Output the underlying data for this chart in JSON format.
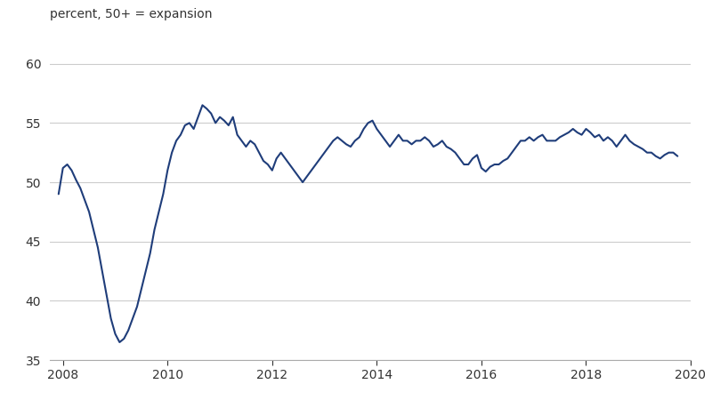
{
  "ylabel": "percent, 50+ = expansion",
  "xlim": [
    2007.75,
    2020.0
  ],
  "ylim": [
    35,
    62
  ],
  "yticks": [
    35,
    40,
    45,
    50,
    55,
    60
  ],
  "xticks": [
    2008,
    2010,
    2012,
    2014,
    2016,
    2018,
    2020
  ],
  "line_color": "#1f3d7a",
  "line_width": 1.5,
  "bg_color": "#ffffff",
  "grid_color": "#cccccc",
  "label_color": "#333333",
  "dates": [
    2007.917,
    2008.0,
    2008.083,
    2008.167,
    2008.25,
    2008.333,
    2008.417,
    2008.5,
    2008.583,
    2008.667,
    2008.75,
    2008.833,
    2008.917,
    2009.0,
    2009.083,
    2009.167,
    2009.25,
    2009.333,
    2009.417,
    2009.5,
    2009.583,
    2009.667,
    2009.75,
    2009.833,
    2009.917,
    2010.0,
    2010.083,
    2010.167,
    2010.25,
    2010.333,
    2010.417,
    2010.5,
    2010.583,
    2010.667,
    2010.75,
    2010.833,
    2010.917,
    2011.0,
    2011.083,
    2011.167,
    2011.25,
    2011.333,
    2011.417,
    2011.5,
    2011.583,
    2011.667,
    2011.75,
    2011.833,
    2011.917,
    2012.0,
    2012.083,
    2012.167,
    2012.25,
    2012.333,
    2012.417,
    2012.5,
    2012.583,
    2012.667,
    2012.75,
    2012.833,
    2012.917,
    2013.0,
    2013.083,
    2013.167,
    2013.25,
    2013.333,
    2013.417,
    2013.5,
    2013.583,
    2013.667,
    2013.75,
    2013.833,
    2013.917,
    2014.0,
    2014.083,
    2014.167,
    2014.25,
    2014.333,
    2014.417,
    2014.5,
    2014.583,
    2014.667,
    2014.75,
    2014.833,
    2014.917,
    2015.0,
    2015.083,
    2015.167,
    2015.25,
    2015.333,
    2015.417,
    2015.5,
    2015.583,
    2015.667,
    2015.75,
    2015.833,
    2015.917,
    2016.0,
    2016.083,
    2016.167,
    2016.25,
    2016.333,
    2016.417,
    2016.5,
    2016.583,
    2016.667,
    2016.75,
    2016.833,
    2016.917,
    2017.0,
    2017.083,
    2017.167,
    2017.25,
    2017.333,
    2017.417,
    2017.5,
    2017.583,
    2017.667,
    2017.75,
    2017.833,
    2017.917,
    2018.0,
    2018.083,
    2018.167,
    2018.25,
    2018.333,
    2018.417,
    2018.5,
    2018.583,
    2018.667,
    2018.75,
    2018.833,
    2018.917,
    2019.0,
    2019.083,
    2019.167,
    2019.25,
    2019.333,
    2019.417,
    2019.5,
    2019.583,
    2019.667,
    2019.75
  ],
  "values": [
    49.0,
    51.2,
    51.5,
    51.0,
    50.2,
    49.5,
    48.5,
    47.5,
    46.0,
    44.5,
    42.5,
    40.5,
    38.5,
    37.2,
    36.5,
    36.8,
    37.5,
    38.5,
    39.5,
    41.0,
    42.5,
    44.0,
    46.0,
    47.5,
    49.0,
    51.0,
    52.5,
    53.5,
    54.0,
    54.8,
    55.0,
    54.5,
    55.5,
    56.5,
    56.2,
    55.8,
    55.0,
    55.5,
    55.2,
    54.8,
    55.5,
    54.0,
    53.5,
    53.0,
    53.5,
    53.2,
    52.5,
    51.8,
    51.5,
    51.0,
    52.0,
    52.5,
    52.0,
    51.5,
    51.0,
    50.5,
    50.0,
    50.5,
    51.0,
    51.5,
    52.0,
    52.5,
    53.0,
    53.5,
    53.8,
    53.5,
    53.2,
    53.0,
    53.5,
    53.8,
    54.5,
    55.0,
    55.2,
    54.5,
    54.0,
    53.5,
    53.0,
    53.5,
    54.0,
    53.5,
    53.5,
    53.2,
    53.5,
    53.5,
    53.8,
    53.5,
    53.0,
    53.2,
    53.5,
    53.0,
    52.8,
    52.5,
    52.0,
    51.5,
    51.5,
    52.0,
    52.3,
    51.2,
    50.9,
    51.3,
    51.5,
    51.5,
    51.8,
    52.0,
    52.5,
    53.0,
    53.5,
    53.5,
    53.8,
    53.5,
    53.8,
    54.0,
    53.5,
    53.5,
    53.5,
    53.8,
    54.0,
    54.2,
    54.5,
    54.2,
    54.0,
    54.5,
    54.2,
    53.8,
    54.0,
    53.5,
    53.8,
    53.5,
    53.0,
    53.5,
    54.0,
    53.5,
    53.2,
    53.0,
    52.8,
    52.5,
    52.5,
    52.2,
    52.0,
    52.3,
    52.5,
    52.5,
    52.2
  ]
}
